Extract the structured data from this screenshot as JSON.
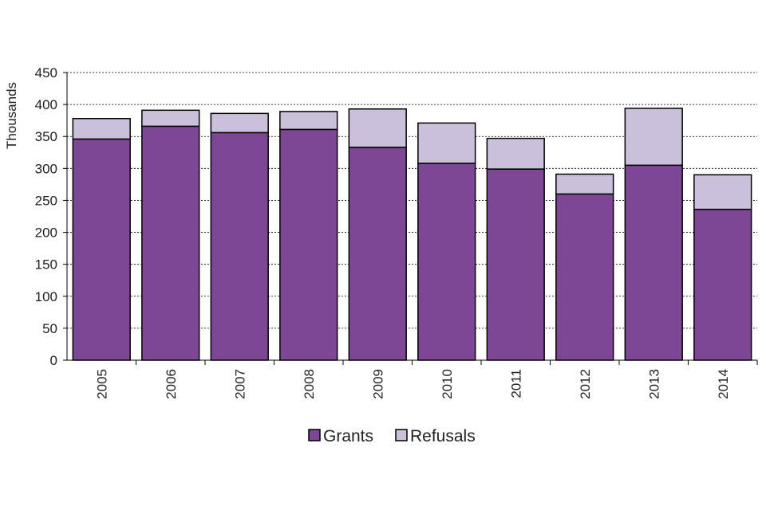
{
  "chart_data": {
    "type": "bar",
    "stacked": true,
    "title": "",
    "xlabel": "",
    "ylabel": "Thousands",
    "ylim": [
      0,
      450
    ],
    "yticks": [
      0,
      50,
      100,
      150,
      200,
      250,
      300,
      350,
      400,
      450
    ],
    "grid": true,
    "legend_position": "bottom",
    "categories": [
      "2005",
      "2006",
      "2007",
      "2008",
      "2009",
      "2010",
      "2011",
      "2012",
      "2013",
      "2014"
    ],
    "series": [
      {
        "name": "Grants",
        "color": "#7e4796",
        "values": [
          346,
          366,
          356,
          361,
          333,
          308,
          299,
          260,
          305,
          236
        ]
      },
      {
        "name": "Refusals",
        "color": "#cbc0dc",
        "values": [
          32,
          25,
          30,
          28,
          60,
          63,
          48,
          31,
          89,
          54
        ]
      }
    ]
  }
}
